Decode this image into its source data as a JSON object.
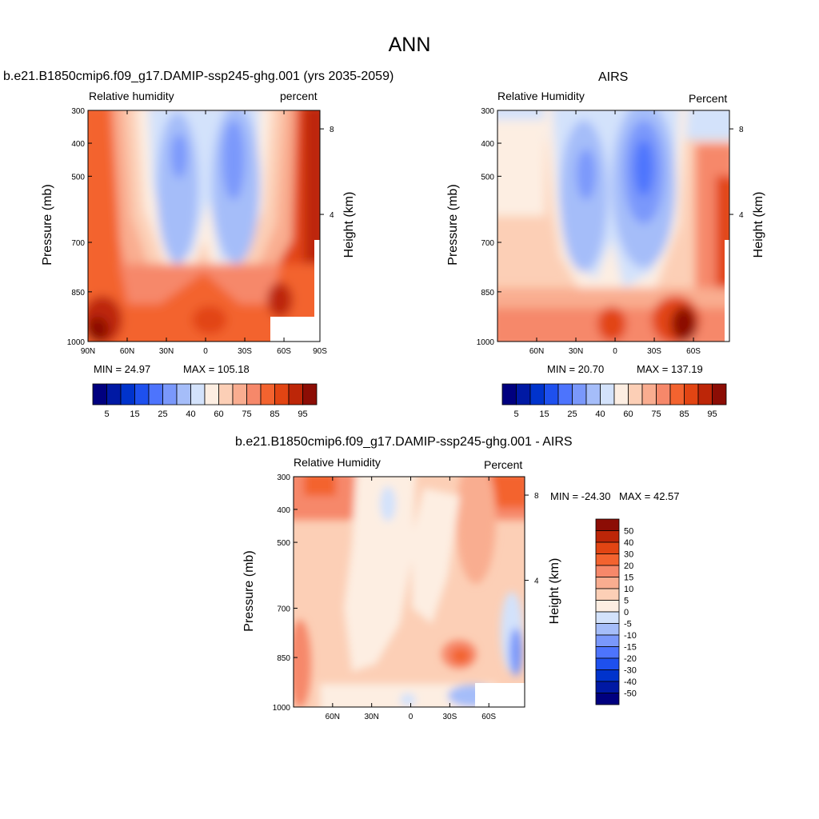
{
  "page": {
    "title": "ANN"
  },
  "colors": {
    "rh_scale": [
      "#00007f",
      "#0019a4",
      "#0033cc",
      "#1e50ee",
      "#4d74fd",
      "#7a98fb",
      "#a5bdf9",
      "#d3e2fb",
      "#fdeee2",
      "#fccfb6",
      "#f9ad90",
      "#f6886a",
      "#f3632f",
      "#e24513",
      "#bd2608",
      "#8c0d05"
    ],
    "diff_scale": [
      "#00007f",
      "#0019a4",
      "#0033cc",
      "#1e50ee",
      "#4d74fd",
      "#7a98fb",
      "#a5bdf9",
      "#d3e2fb",
      "#fdeee2",
      "#fccfb6",
      "#f9ad90",
      "#f6886a",
      "#f3632f",
      "#e24513",
      "#bd2608",
      "#8c0d05"
    ]
  },
  "chart_data": [
    {
      "type": "heatmap",
      "title": "b.e21.B1850cmip6.f09_g17.DAMIP-ssp245-ghg.001 (yrs 2035-2059)",
      "left_string": "Relative humidity",
      "right_string": "percent",
      "ylabel": "Pressure (mb)",
      "y2label": "Height (km)",
      "yticks": [
        "300",
        "400",
        "500",
        "700",
        "850",
        "1000"
      ],
      "y2ticks": [
        "8",
        "4"
      ],
      "xticks": [
        "90N",
        "60N",
        "30N",
        "0",
        "30S",
        "60S",
        "90S"
      ],
      "min_label": "MIN =  24.97",
      "max_label": "MAX = 105.18",
      "colorbar_labels": [
        "5",
        "15",
        "25",
        "40",
        "60",
        "75",
        "85",
        "95"
      ]
    },
    {
      "type": "heatmap",
      "title": "AIRS",
      "left_string": "Relative Humidity",
      "right_string": "Percent",
      "ylabel": "Pressure (mb)",
      "y2label": "Height (km)",
      "yticks": [
        "300",
        "400",
        "500",
        "700",
        "850",
        "1000"
      ],
      "y2ticks": [
        "8",
        "4"
      ],
      "xticks": [
        "60N",
        "30N",
        "0",
        "30S",
        "60S"
      ],
      "min_label": "MIN =  20.70",
      "max_label": "MAX = 137.19",
      "colorbar_labels": [
        "5",
        "15",
        "25",
        "40",
        "60",
        "75",
        "85",
        "95"
      ]
    },
    {
      "type": "heatmap",
      "title": "b.e21.B1850cmip6.f09_g17.DAMIP-ssp245-ghg.001 - AIRS",
      "left_string": "Relative Humidity",
      "right_string": "Percent",
      "ylabel": "Pressure (mb)",
      "y2label": "Height (km)",
      "yticks": [
        "300",
        "400",
        "500",
        "700",
        "850",
        "1000"
      ],
      "y2ticks": [
        "8",
        "4"
      ],
      "xticks": [
        "60N",
        "30N",
        "0",
        "30S",
        "60S"
      ],
      "min_label": "MIN = -24.30",
      "max_label": "MAX =  42.57",
      "colorbar_labels": [
        "50",
        "40",
        "30",
        "20",
        "15",
        "10",
        "5",
        "0",
        "-5",
        "-10",
        "-15",
        "-20",
        "-30",
        "-40",
        "-50"
      ]
    }
  ]
}
